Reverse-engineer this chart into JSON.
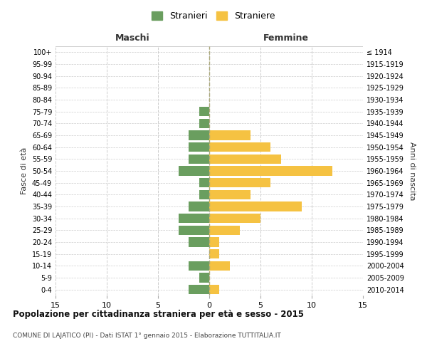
{
  "age_groups": [
    "0-4",
    "5-9",
    "10-14",
    "15-19",
    "20-24",
    "25-29",
    "30-34",
    "35-39",
    "40-44",
    "45-49",
    "50-54",
    "55-59",
    "60-64",
    "65-69",
    "70-74",
    "75-79",
    "80-84",
    "85-89",
    "90-94",
    "95-99",
    "100+"
  ],
  "birth_years": [
    "2010-2014",
    "2005-2009",
    "2000-2004",
    "1995-1999",
    "1990-1994",
    "1985-1989",
    "1980-1984",
    "1975-1979",
    "1970-1974",
    "1965-1969",
    "1960-1964",
    "1955-1959",
    "1950-1954",
    "1945-1949",
    "1940-1944",
    "1935-1939",
    "1930-1934",
    "1925-1929",
    "1920-1924",
    "1915-1919",
    "≤ 1914"
  ],
  "maschi": [
    2,
    1,
    2,
    0,
    2,
    3,
    3,
    2,
    1,
    1,
    3,
    2,
    2,
    2,
    1,
    1,
    0,
    0,
    0,
    0,
    0
  ],
  "femmine": [
    1,
    0,
    2,
    1,
    1,
    3,
    5,
    9,
    4,
    6,
    12,
    7,
    6,
    4,
    0,
    0,
    0,
    0,
    0,
    0,
    0
  ],
  "color_maschi": "#6a9e5f",
  "color_femmine": "#f5c242",
  "title": "Popolazione per cittadinanza straniera per età e sesso - 2015",
  "subtitle": "COMUNE DI LAJATICO (PI) - Dati ISTAT 1° gennaio 2015 - Elaborazione TUTTITALIA.IT",
  "xlabel_left": "Maschi",
  "xlabel_right": "Femmine",
  "ylabel_left": "Fasce di età",
  "ylabel_right": "Anni di nascita",
  "legend_maschi": "Stranieri",
  "legend_femmine": "Straniere",
  "xlim": 15,
  "bg_color": "#ffffff",
  "grid_color": "#cccccc",
  "bar_height": 0.8
}
